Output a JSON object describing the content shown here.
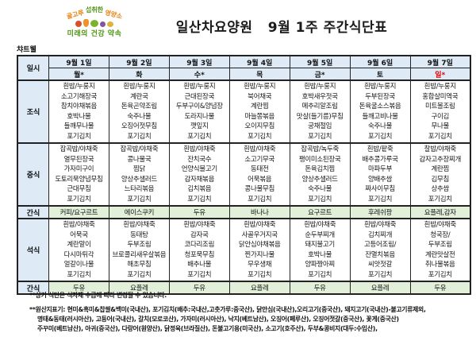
{
  "logo": {
    "arc1": "골고루",
    "arc2": "섭취한",
    "arc3": "영양소",
    "line2": "미래의 건강 약속"
  },
  "title": "일산차요양원   9월 1주 주간식단표",
  "chart_label": "챠트웰",
  "colors": {
    "header_blue": "#DEEBF7",
    "snack_green": "#E2EFD9",
    "sunday_red": "#E00000",
    "logo_orange": "#E8820C",
    "logo_green": "#4E9312"
  },
  "table": {
    "corner_label": "일시",
    "row_labels": {
      "breakfast": "조식",
      "lunch": "중식",
      "snack1": "간식",
      "dinner": "석식",
      "snack2": "간식"
    },
    "days": [
      {
        "date": "9월 1일",
        "day": "월*",
        "red": false,
        "breakfast": [
          "흰밥/누룽지",
          "소고기해장국",
          "참치야채볶음",
          "호박나물",
          "들깨무나물",
          "포기김치"
        ],
        "lunch": [
          "잡곡밥/야채죽",
          "열무된장국",
          "가자미구이",
          "도토리묵양념무침",
          "근대무침",
          "포기김치"
        ],
        "snack1": "커피/요구르트",
        "dinner": [
          "흰밥/야채죽",
          "어묵국",
          "계란말이",
          "다시마튀각",
          "얼갈이나물",
          "포기김치"
        ],
        "snack2": "두유"
      },
      {
        "date": "9월 2일",
        "day": "화",
        "red": false,
        "breakfast": [
          "흰밥/누룽지",
          "계란국",
          "돈육곤약조림",
          "숙주나물",
          "오징어젓무침",
          "포기김치"
        ],
        "lunch": [
          "잡곡밥/야채죽",
          "콩나물국",
          "찜닭",
          "양상추샐러드",
          "느타리볶음",
          "포기김치"
        ],
        "snack1": "에이스쿠키",
        "dinner": [
          "흰밥/야채죽",
          "동태탕",
          "두부조림",
          "브로콜리새우살볶음",
          "해초무침",
          "포기김치"
        ],
        "snack2": "요플레"
      },
      {
        "date": "9월 3일",
        "day": "수*",
        "red": false,
        "breakfast": [
          "흰밥/누룽지",
          "근대된장국",
          "두부구이&양념장",
          "도라지나물",
          "깻잎지",
          "포기김치"
        ],
        "lunch": [
          "흰밥/야채죽",
          "잔치국수",
          "언양식불고기",
          "감자채볶음",
          "김치볶음",
          "포기김치"
        ],
        "snack1": "두유",
        "dinner": [
          "흰밥/야채죽",
          "감자국",
          "코다리조림",
          "청포묵무침",
          "배추나물",
          "포기김치"
        ],
        "snack2": "두유"
      },
      {
        "date": "9월 4일",
        "day": "목",
        "red": false,
        "breakfast": [
          "흰밥/누룽지",
          "북어채국",
          "계란찜",
          "마늘쫑볶음",
          "오이지무침",
          "포기김치"
        ],
        "lunch": [
          "흰밥/야채죽",
          "소고기무국",
          "동태전",
          "어묵볶음",
          "콩나물무침",
          "포기김치"
        ],
        "snack1": "바나나",
        "dinner": [
          "흰밥/야채죽",
          "사골우거지국",
          "닭안심야채볶음",
          "찐가지나물",
          "무우생채",
          "포기김치"
        ],
        "snack2": "요플레"
      },
      {
        "date": "9월 5일",
        "day": "금*",
        "red": false,
        "breakfast": [
          "흰밥/누룽지",
          "호박새우젓국",
          "메추리알조림",
          "맛살(들기름)무침",
          "궁채절임",
          "포기김치"
        ],
        "lunch": [
          "잡곡밥/녹두죽",
          "팽이미소된장국",
          "돈육김치찜",
          "양상추샐러드",
          "숙주나물",
          "포기김치"
        ],
        "snack1": "요구르트",
        "dinner": [
          "흰밥/야채죽",
          "순두부찌개",
          "돼지불고기",
          "호박나물",
          "양파짱아찌",
          "포기김치"
        ],
        "snack2": "두유"
      },
      {
        "date": "9월 6일",
        "day": "토",
        "red": false,
        "breakfast": [
          "흰밥/누룽지",
          "두부된장국",
          "돈육굴소스볶음",
          "들깨고비나물",
          "숙주나물",
          "포기김치"
        ],
        "lunch": [
          "흰밥/팥죽",
          "배추콩가루국",
          "마파두부",
          "양배추쌈",
          "짜사이무침",
          "포기김치"
        ],
        "snack1": "후레쉬팡",
        "dinner": [
          "흰밥/야채죽",
          "김치찌개",
          "고등어조림/",
          "잔멸치볶음",
          "씨앗젓갈",
          "포기김치"
        ],
        "snack2": "요플레"
      },
      {
        "date": "9월 7일",
        "day": "일*",
        "red": true,
        "breakfast": [
          "흰밥/누룽지",
          "홍합살미역국",
          "미트볼조림",
          "구이김",
          "무나물",
          "포기김치"
        ],
        "lunch": [
          "찰밥/야채죽",
          "감자고추장찌개",
          "계란찜",
          "김무침",
          "상추쌈",
          "포기김치"
        ],
        "snack1": "요플레,감자",
        "dinner": [
          "흰밥/야채죽",
          "청국장/",
          "두부조림",
          "계란맛살전",
          "취나물볶음",
          "포기김치"
        ],
        "snack2": "두유"
      }
    ]
  },
  "notes": [
    "**상기 식단은 식자재 수급에 따라 변경될 수 있습니다.",
    "**원산지표기: 현미&흑미&찹쌀&백미(국내산), 포기김치(배추:국내산,고춧가루:중국산), 닭안심(국내산),오리고기(중국산), 돼지고기(국내산)-불고기류제외,",
    "명태&동태(러시아산), 고등어(국내산), 갈치(모로코산), 가자미(러시아산), 낙지(베트남산), 오징어(페루산), 오징어젓갈(중국산),  꽃게(중국산)",
    "주꾸미(베트남산), 아귀(중국산), 다랑어(원양산), 닭정육(브라질산), 돈불고기용(미국산), 소고기(호주산), 두부&콩비지(대두:수입산),"
  ]
}
